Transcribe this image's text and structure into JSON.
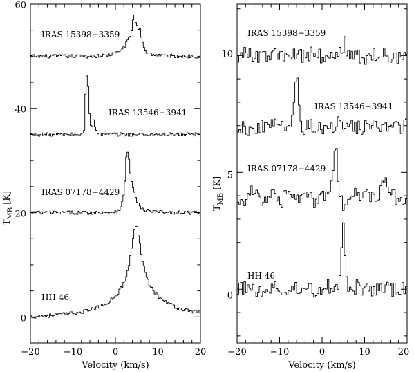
{
  "chart_data": [
    {
      "type": "line",
      "panel": "left",
      "xlabel": "Velocity (km/s)",
      "ylabel": "T_MB [K]",
      "xlim": [
        -20,
        20
      ],
      "ylim": [
        -5,
        60
      ],
      "xticks": [
        -20,
        -10,
        0,
        10,
        20
      ],
      "xtick_labels": [
        "−20",
        "−10",
        "0",
        "10",
        "20"
      ],
      "yticks": [
        0,
        20,
        40,
        60
      ],
      "ytick_labels": [
        "0",
        "20",
        "40",
        "60"
      ],
      "series": [
        {
          "name": "IRAS 15398−3359",
          "x": [
            -20,
            -10,
            -5,
            -2,
            0,
            1,
            2,
            3,
            3.5,
            4,
            4.4,
            4.8,
            5.3,
            5.8,
            6.3,
            7,
            8,
            10,
            14,
            20
          ],
          "y": [
            50,
            50,
            50,
            50.2,
            50.5,
            51,
            51.8,
            53,
            54,
            55.5,
            58.5,
            56.5,
            55.5,
            55,
            53,
            51,
            50.5,
            50.2,
            50,
            50
          ]
        },
        {
          "name": "IRAS 13546−3941",
          "x": [
            -20,
            -10,
            -8,
            -7.5,
            -7.2,
            -7,
            -6.8,
            -6.5,
            -6.3,
            -6,
            -5.8,
            -5.5,
            -5.2,
            -4.9,
            -4.5,
            -4,
            -2,
            0,
            10,
            20
          ],
          "y": [
            35,
            35,
            35,
            35.2,
            36.5,
            44,
            46.5,
            46,
            42,
            38,
            37,
            36.5,
            38.5,
            37,
            35.5,
            35.1,
            35,
            35,
            35,
            35
          ]
        },
        {
          "name": "IRAS 07178−4429",
          "x": [
            -20,
            -10,
            -5,
            -1,
            0,
            1,
            1.5,
            2,
            2.3,
            2.6,
            3,
            3.3,
            3.6,
            4,
            4.5,
            5,
            5.5,
            6,
            7,
            9,
            12,
            20
          ],
          "y": [
            20,
            20,
            20,
            20.1,
            20.3,
            20.7,
            21.5,
            23.5,
            27,
            31,
            31.5,
            30,
            27,
            25,
            23.8,
            22.5,
            21.5,
            20.8,
            20.4,
            20.2,
            20,
            20
          ]
        },
        {
          "name": "HH 46",
          "x": [
            -20,
            -15,
            -10,
            -7,
            -5,
            -3,
            -2,
            -1,
            0,
            1,
            2,
            3,
            3.5,
            4,
            4.4,
            4.8,
            5.2,
            5.6,
            6,
            6.5,
            7,
            7.5,
            8,
            9,
            10,
            12,
            15,
            20
          ],
          "y": [
            0,
            0.3,
            0.7,
            1.1,
            1.6,
            2.2,
            2.7,
            3.3,
            4,
            5.1,
            6.5,
            9,
            11.5,
            14,
            16.5,
            17.5,
            17,
            15,
            12.5,
            10.5,
            9,
            7.5,
            6.3,
            5,
            4,
            2.8,
            1.6,
            0.8
          ]
        }
      ]
    },
    {
      "type": "line",
      "panel": "right",
      "xlabel": "Velocity (km/s)",
      "ylabel": "T_MB [K]",
      "xlim": [
        -20,
        20
      ],
      "ylim": [
        -2.3,
        12.2
      ],
      "xticks": [
        -20,
        -10,
        0,
        10,
        20
      ],
      "xtick_labels": [
        "−20",
        "−10",
        "0",
        "10",
        "20"
      ],
      "yticks": [
        0,
        5,
        10
      ],
      "ytick_labels": [
        "0",
        "5",
        "10"
      ],
      "series": [
        {
          "name": "IRAS 15398−3359",
          "x": [
            -20,
            -17,
            -14,
            -11,
            -8,
            -5,
            -2,
            1,
            3,
            4.5,
            5,
            5.4,
            5.8,
            6.5,
            9,
            12,
            15,
            18,
            20
          ],
          "y": [
            10,
            10.1,
            9.9,
            10.05,
            9.95,
            10,
            10.1,
            9.9,
            10,
            10.1,
            10.3,
            11,
            10.2,
            10.1,
            9.9,
            10,
            10.05,
            9.95,
            10
          ]
        },
        {
          "name": "IRAS 13546−3941",
          "x": [
            -20,
            -16,
            -12,
            -9,
            -7.5,
            -7,
            -6.6,
            -6.3,
            -6,
            -5.7,
            -5.4,
            -5,
            -4.5,
            -3,
            0,
            4,
            8,
            12,
            16,
            20
          ],
          "y": [
            7,
            6.8,
            7.1,
            6.9,
            7,
            7.2,
            7.8,
            8.5,
            9,
            9.4,
            7.6,
            7.1,
            6.9,
            7,
            6.9,
            7.1,
            6.9,
            7,
            6.9,
            7
          ]
        },
        {
          "name": "IRAS 07178−4429",
          "x": [
            -20,
            -18,
            -16,
            -14,
            -12,
            -10,
            -8,
            -6,
            -4,
            -2,
            0,
            2,
            2.8,
            3.2,
            3.5,
            3.8,
            4.2,
            5,
            7,
            9,
            11,
            13,
            14.5,
            15,
            16,
            18,
            20
          ],
          "y": [
            4,
            3.7,
            4.3,
            3.8,
            4.1,
            3.6,
            4.2,
            3.9,
            4.3,
            3.7,
            4,
            4.4,
            5.2,
            6.2,
            5.5,
            4.6,
            4,
            3.6,
            4.2,
            3.8,
            4.1,
            3.7,
            4.5,
            4.9,
            4.2,
            3.8,
            4
          ]
        },
        {
          "name": "HH 46",
          "x": [
            -20,
            -17,
            -14,
            -11,
            -8,
            -5,
            -2,
            1,
            3,
            4,
            4.5,
            4.8,
            5.1,
            5.4,
            5.7,
            6,
            6.5,
            8,
            11,
            14,
            17,
            20
          ],
          "y": [
            0,
            0.1,
            -0.15,
            0.05,
            -0.1,
            0.1,
            -0.05,
            0.1,
            0.05,
            0.3,
            1.5,
            3.3,
            3,
            1.5,
            0.6,
            0.2,
            0,
            0.1,
            -0.1,
            0.05,
            -0.05,
            0
          ]
        }
      ]
    }
  ],
  "labels": {
    "left": {
      "s1": "IRAS 15398−3359",
      "s2": "IRAS 13546−3941",
      "s3": "IRAS 07178−4429",
      "s4": "HH 46",
      "xlabel": "Velocity (km/s)",
      "ylabel_main": "T",
      "ylabel_sub": "MB",
      "ylabel_unit": " [K]"
    },
    "right": {
      "s1": "IRAS 15398−3359",
      "s2": "IRAS 13546−3941",
      "s3": "IRAS 07178−4429",
      "s4": "HH 46",
      "xlabel": "Velocity (km/s)",
      "ylabel_main": "T",
      "ylabel_sub": "MB",
      "ylabel_unit": " [K]"
    },
    "ticks": {
      "left_x": [
        "−20",
        "−10",
        "0",
        "10",
        "20"
      ],
      "left_y": [
        "0",
        "20",
        "40",
        "60"
      ],
      "right_x": [
        "−20",
        "−10",
        "0",
        "10",
        "20"
      ],
      "right_y": [
        "0",
        "5",
        "10"
      ]
    }
  }
}
